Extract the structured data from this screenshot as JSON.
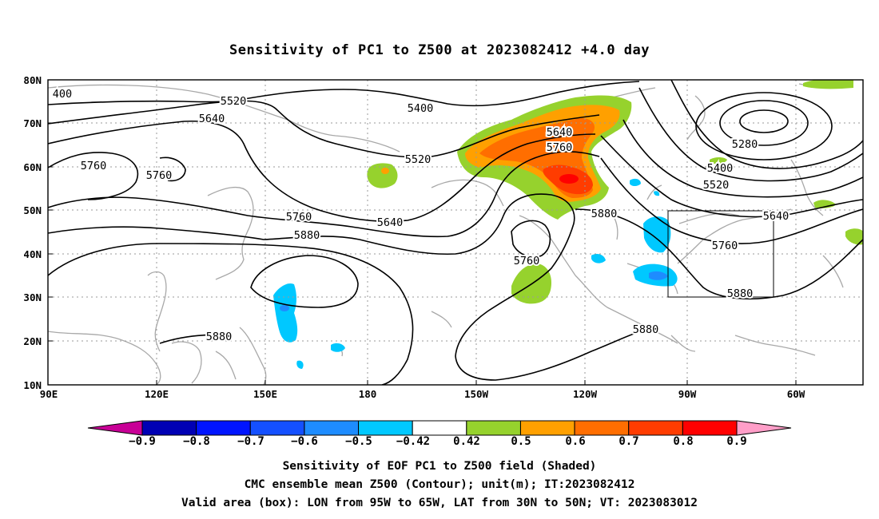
{
  "title": "Sensitivity of PC1 to Z500 at 2023082412 +4.0 day",
  "map": {
    "lon_labels": [
      "90E",
      "120E",
      "150E",
      "180",
      "150W",
      "120W",
      "90W",
      "60W"
    ],
    "lat_labels": [
      "80N",
      "70N",
      "60N",
      "50N",
      "40N",
      "30N",
      "20N",
      "10N"
    ],
    "valid_box": {
      "lon_from": "95W",
      "lon_to": "65W",
      "lat_from": "30N",
      "lat_to": "50N"
    }
  },
  "contour_labels": [
    "400",
    "5520",
    "5640",
    "5760",
    "5760",
    "5760",
    "5880",
    "5880",
    "5520",
    "5640",
    "5400",
    "5640",
    "5760",
    "5880",
    "5760",
    "5880",
    "5280",
    "5400",
    "5520",
    "5640",
    "5760",
    "5880"
  ],
  "colorbar": {
    "ticks": [
      "−0.9",
      "−0.8",
      "−0.7",
      "−0.6",
      "−0.5",
      "−0.42",
      "0.42",
      "0.5",
      "0.6",
      "0.7",
      "0.8",
      "0.9"
    ],
    "colors": [
      "#0000b4",
      "#0014ff",
      "#1450ff",
      "#1e8cff",
      "#00c8ff",
      "#ffffff",
      "#96d22d",
      "#ffa000",
      "#ff6e00",
      "#ff3c00",
      "#ff0000"
    ],
    "low_arrow_color": "#c80096",
    "high_arrow_color": "#ff9ec8"
  },
  "caption": [
    "Sensitivity of EOF PC1 to Z500 field (Shaded)",
    "CMC ensemble mean Z500 (Contour); unit(m); IT:2023082412",
    "Valid area (box): LON from 95W to 65W, LAT from 30N to 50N; VT: 2023083012"
  ]
}
